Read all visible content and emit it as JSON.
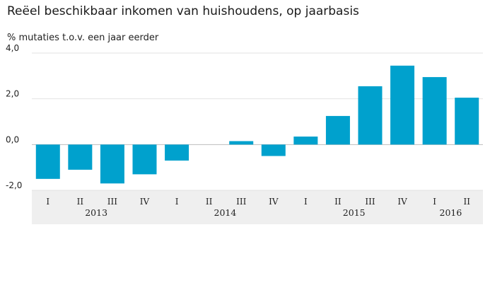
{
  "chart_data": {
    "type": "bar",
    "title": "Reëel beschikbaar inkomen van huishoudens, op jaarbasis",
    "ylabel": "% mutaties t.o.v. een jaar eerder",
    "ylim": [
      -2,
      4
    ],
    "yticks": [
      "4,0",
      "2,0",
      "0,0",
      "-2,0"
    ],
    "ytick_values": [
      4,
      2,
      0,
      -2
    ],
    "categories": [
      "I",
      "II",
      "III",
      "IV",
      "I",
      "II",
      "III",
      "IV",
      "I",
      "II",
      "III",
      "IV",
      "I",
      "II"
    ],
    "years": [
      {
        "label": "2013",
        "start": 0,
        "end": 3
      },
      {
        "label": "2014",
        "start": 4,
        "end": 7
      },
      {
        "label": "2015",
        "start": 8,
        "end": 11
      },
      {
        "label": "2016",
        "start": 12,
        "end": 13
      }
    ],
    "values": [
      -1.5,
      -1.1,
      -1.7,
      -1.3,
      -0.7,
      0.0,
      0.15,
      -0.5,
      0.35,
      1.25,
      2.55,
      3.45,
      2.95,
      2.05
    ],
    "bar_color": "#00a1cd",
    "axis_band_color": "#efefef",
    "grid": true
  }
}
